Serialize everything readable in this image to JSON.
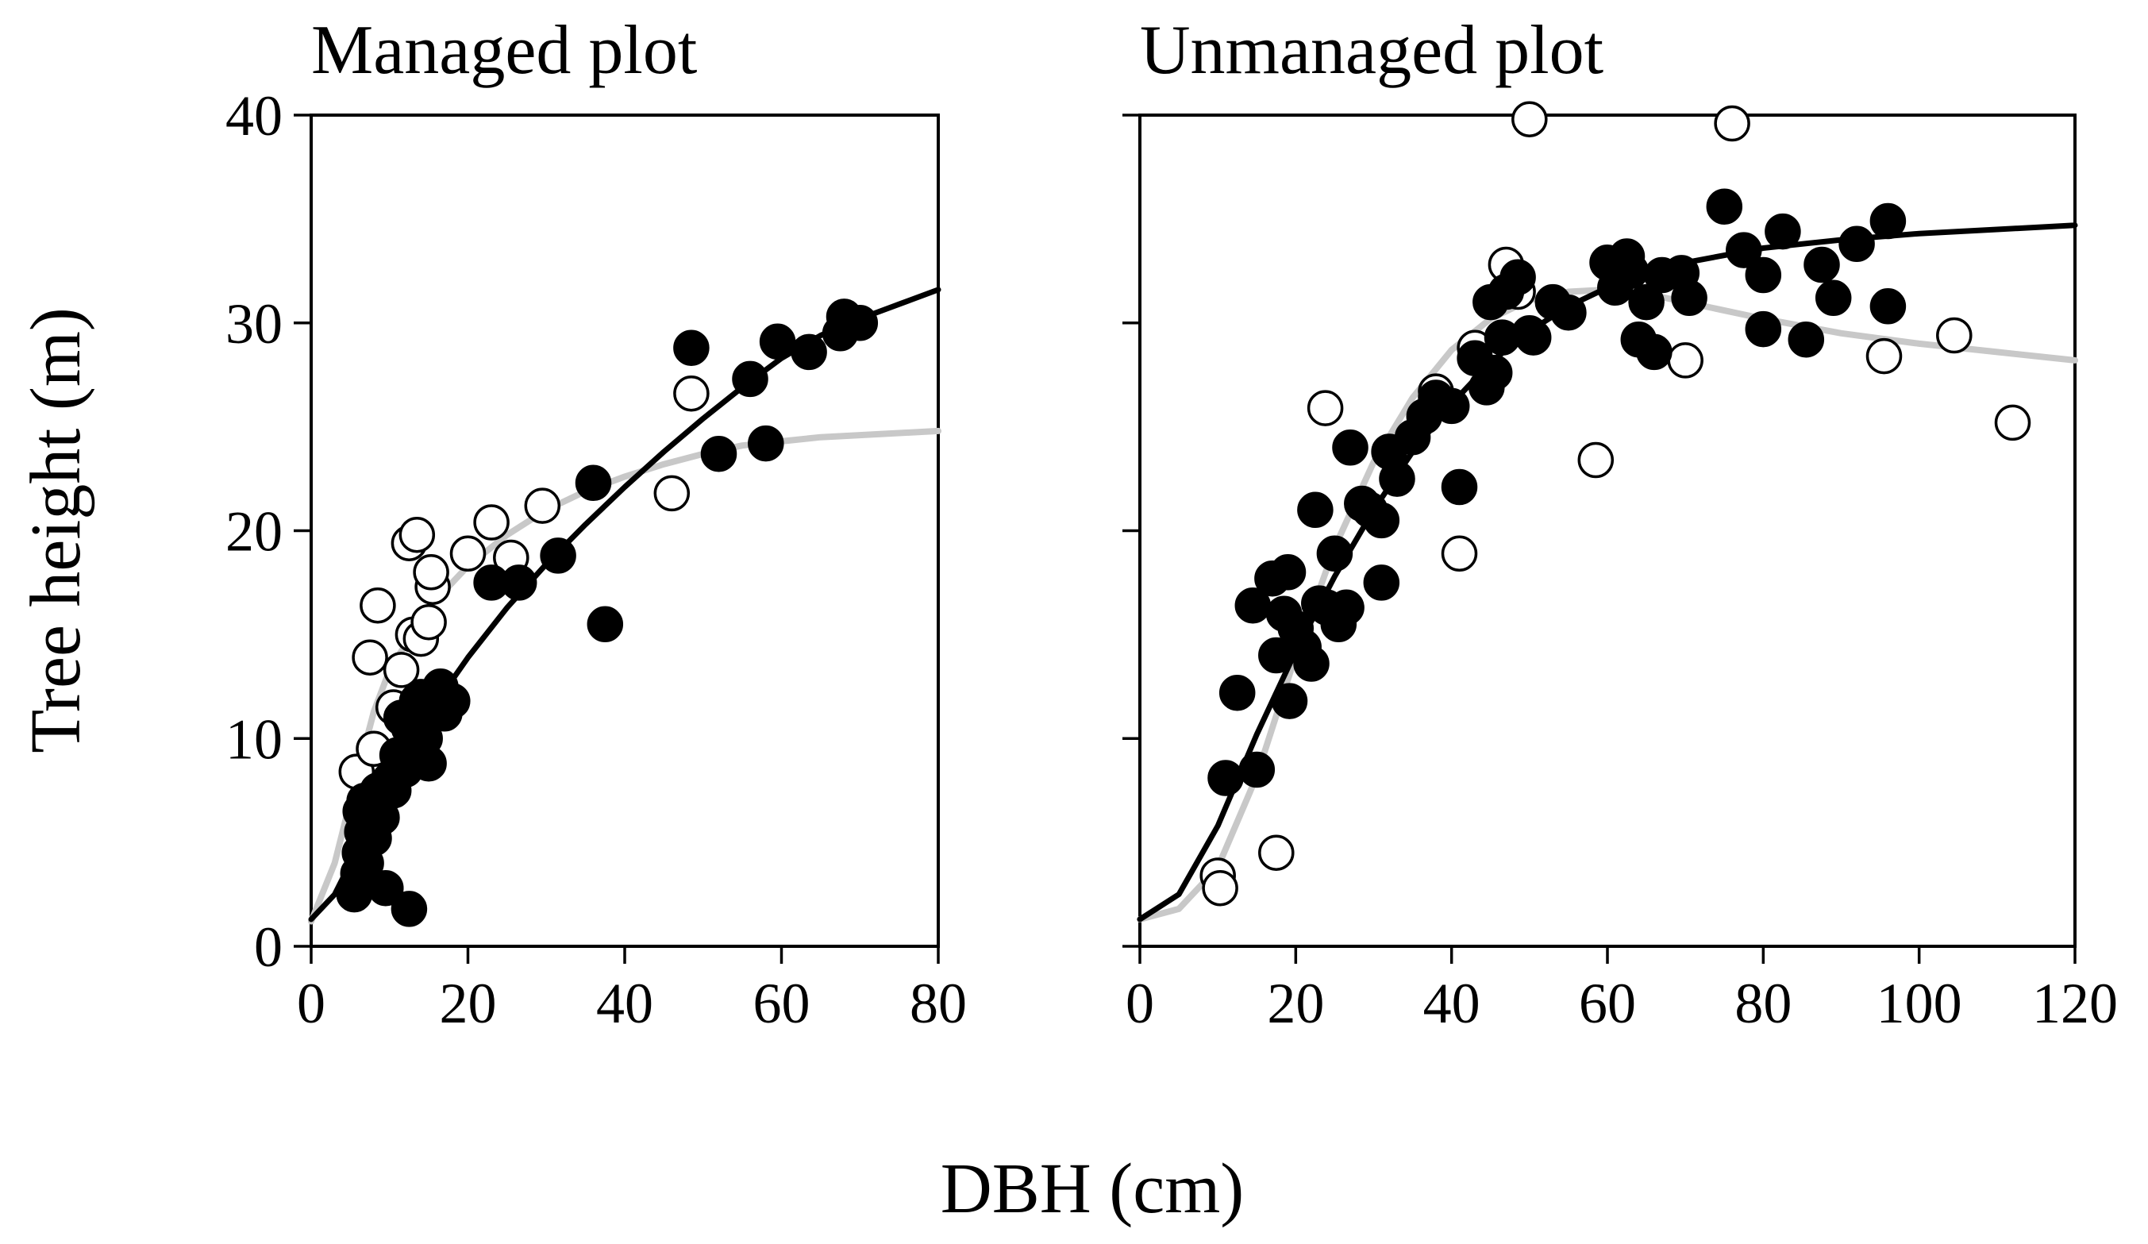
{
  "figure": {
    "ylabel": "Tree height (m)",
    "xlabel": "DBH (cm)"
  },
  "colors": {
    "filled_marker": "#000000",
    "open_marker_fill": "#ffffff",
    "open_marker_edge": "#000000",
    "fit_black": "#000000",
    "fit_gray": "#c8c8c8"
  },
  "chart_data": [
    {
      "type": "scatter",
      "title": "Managed plot",
      "xlabel": "DBH (cm)",
      "ylabel": "Tree height (m)",
      "xlim": [
        0,
        80
      ],
      "ylim": [
        0,
        40
      ],
      "xticks": [
        0,
        20,
        40,
        60,
        80
      ],
      "yticks": [
        0,
        10,
        20,
        30,
        40
      ],
      "xtick_labels": [
        "0",
        "20",
        "40",
        "60",
        "80"
      ],
      "ytick_labels": [
        "0",
        "10",
        "20",
        "30",
        "40"
      ],
      "series": [
        {
          "name": "filled",
          "marker": "filled-circle",
          "points": [
            [
              5.5,
              2.5
            ],
            [
              6,
              3.5
            ],
            [
              6.2,
              4.5
            ],
            [
              6.5,
              5.5
            ],
            [
              6.3,
              6.5
            ],
            [
              6.8,
              7
            ],
            [
              7,
              4
            ],
            [
              7.5,
              6
            ],
            [
              8,
              5.2
            ],
            [
              8.5,
              7.5
            ],
            [
              9,
              6.2
            ],
            [
              9.5,
              2.8
            ],
            [
              10,
              8
            ],
            [
              10.5,
              7.5
            ],
            [
              11,
              9.2
            ],
            [
              11.5,
              11
            ],
            [
              12,
              8.5
            ],
            [
              12.5,
              10.5
            ],
            [
              12.5,
              1.8
            ],
            [
              13,
              9.8
            ],
            [
              13.5,
              11.8
            ],
            [
              14,
              12
            ],
            [
              14.5,
              10
            ],
            [
              15,
              8.8
            ],
            [
              16,
              11.5
            ],
            [
              16.5,
              12.5
            ],
            [
              17,
              11.2
            ],
            [
              18,
              11.8
            ],
            [
              23,
              17.5
            ],
            [
              26.5,
              17.5
            ],
            [
              31.5,
              18.8
            ],
            [
              36,
              22.3
            ],
            [
              37.5,
              15.5
            ],
            [
              48.5,
              28.8
            ],
            [
              52,
              23.7
            ],
            [
              56,
              27.3
            ],
            [
              58,
              24.2
            ],
            [
              59.5,
              29.1
            ],
            [
              63.5,
              28.6
            ],
            [
              67.5,
              29.5
            ],
            [
              68,
              30.3
            ],
            [
              70,
              30
            ]
          ]
        },
        {
          "name": "open",
          "marker": "open-circle",
          "points": [
            [
              5.8,
              8.4
            ],
            [
              7.5,
              13.9
            ],
            [
              8.5,
              16.4
            ],
            [
              8,
              9.5
            ],
            [
              10.5,
              11.5
            ],
            [
              11.5,
              13.3
            ],
            [
              12.5,
              19.4
            ],
            [
              13,
              15
            ],
            [
              13.5,
              19.8
            ],
            [
              14,
              14.8
            ],
            [
              15,
              15.6
            ],
            [
              15.5,
              17.3
            ],
            [
              15.3,
              18
            ],
            [
              20,
              18.9
            ],
            [
              23,
              20.4
            ],
            [
              25.5,
              18.7
            ],
            [
              29.5,
              21.2
            ],
            [
              46,
              21.8
            ],
            [
              48.5,
              26.6
            ]
          ]
        }
      ],
      "fits": [
        {
          "name": "fit-black",
          "color": "#000000",
          "points": [
            [
              0,
              1.3
            ],
            [
              3,
              2.5
            ],
            [
              5,
              4
            ],
            [
              8,
              6.3
            ],
            [
              10,
              7.9
            ],
            [
              15,
              11.2
            ],
            [
              20,
              13.9
            ],
            [
              25,
              16.3
            ],
            [
              30,
              18.4
            ],
            [
              35,
              20.3
            ],
            [
              40,
              22.1
            ],
            [
              45,
              23.8
            ],
            [
              50,
              25.4
            ],
            [
              55,
              26.9
            ],
            [
              60,
              28.3
            ],
            [
              65,
              29.4
            ],
            [
              70,
              30.2
            ],
            [
              75,
              30.9
            ],
            [
              80,
              31.6
            ]
          ]
        },
        {
          "name": "fit-gray",
          "color": "#c8c8c8",
          "points": [
            [
              0,
              1.2
            ],
            [
              3,
              4
            ],
            [
              5,
              7
            ],
            [
              8,
              11.3
            ],
            [
              10,
              13.3
            ],
            [
              15,
              16.3
            ],
            [
              20,
              18.3
            ],
            [
              25,
              19.8
            ],
            [
              30,
              21
            ],
            [
              35,
              21.9
            ],
            [
              40,
              22.6
            ],
            [
              45,
              23.2
            ],
            [
              50,
              23.7
            ],
            [
              55,
              24.1
            ],
            [
              60,
              24.3
            ],
            [
              65,
              24.5
            ],
            [
              70,
              24.6
            ],
            [
              75,
              24.7
            ],
            [
              80,
              24.8
            ]
          ]
        }
      ]
    },
    {
      "type": "scatter",
      "title": "Unmanaged plot",
      "xlabel": "DBH (cm)",
      "ylabel": "Tree height (m)",
      "xlim": [
        0,
        120
      ],
      "ylim": [
        0,
        40
      ],
      "xticks": [
        0,
        20,
        40,
        60,
        80,
        100,
        120
      ],
      "yticks": [
        0,
        10,
        20,
        30,
        40
      ],
      "xtick_labels": [
        "0",
        "20",
        "40",
        "60",
        "80",
        "100",
        "120"
      ],
      "ytick_labels": [],
      "series": [
        {
          "name": "filled",
          "marker": "filled-circle",
          "points": [
            [
              11,
              8.1
            ],
            [
              12.5,
              12.2
            ],
            [
              14.5,
              16.4
            ],
            [
              15,
              8.5
            ],
            [
              17,
              17.7
            ],
            [
              17.5,
              14
            ],
            [
              18.5,
              16
            ],
            [
              19,
              18
            ],
            [
              19.2,
              11.8
            ],
            [
              20,
              15.3
            ],
            [
              21,
              14.4
            ],
            [
              22,
              13.6
            ],
            [
              22.5,
              21
            ],
            [
              23,
              16.5
            ],
            [
              24,
              16.3
            ],
            [
              25,
              18.9
            ],
            [
              25.5,
              15.5
            ],
            [
              26.5,
              16.3
            ],
            [
              27,
              24
            ],
            [
              28.5,
              21.3
            ],
            [
              29.5,
              21
            ],
            [
              31,
              17.5
            ],
            [
              31,
              20.5
            ],
            [
              32,
              23.8
            ],
            [
              33,
              22.5
            ],
            [
              35,
              24.5
            ],
            [
              36.5,
              25.5
            ],
            [
              38,
              26.4
            ],
            [
              40,
              26
            ],
            [
              41,
              22.1
            ],
            [
              43,
              28.3
            ],
            [
              44.5,
              26.9
            ],
            [
              45,
              31
            ],
            [
              45.5,
              27.6
            ],
            [
              46.5,
              29.3
            ],
            [
              47,
              31.5
            ],
            [
              48.5,
              32.2
            ],
            [
              50,
              29.5
            ],
            [
              50.5,
              29.3
            ],
            [
              53,
              31
            ],
            [
              55,
              30.5
            ],
            [
              60,
              32.9
            ],
            [
              61,
              31.7
            ],
            [
              62.5,
              33.2
            ],
            [
              63,
              32.5
            ],
            [
              64,
              29.2
            ],
            [
              65,
              31
            ],
            [
              66,
              28.6
            ],
            [
              67,
              32.3
            ],
            [
              69.5,
              32.4
            ],
            [
              70.5,
              31.2
            ],
            [
              75,
              35.6
            ],
            [
              77.5,
              33.5
            ],
            [
              80,
              32.3
            ],
            [
              80,
              29.7
            ],
            [
              82.5,
              34.4
            ],
            [
              85.5,
              29.2
            ],
            [
              87.5,
              32.8
            ],
            [
              89,
              31.2
            ],
            [
              92,
              33.8
            ],
            [
              96,
              34.9
            ],
            [
              96,
              30.8
            ]
          ]
        },
        {
          "name": "open",
          "marker": "open-circle",
          "points": [
            [
              10,
              3.4
            ],
            [
              10.3,
              2.8
            ],
            [
              17.5,
              4.5
            ],
            [
              23.8,
              25.9
            ],
            [
              38,
              26.7
            ],
            [
              41,
              18.9
            ],
            [
              43,
              28.8
            ],
            [
              47,
              32.8
            ],
            [
              48.5,
              31.5
            ],
            [
              50,
              39.8
            ],
            [
              58.5,
              23.4
            ],
            [
              70,
              28.2
            ],
            [
              76,
              39.6
            ],
            [
              95.5,
              28.4
            ],
            [
              104.5,
              29.4
            ],
            [
              112,
              25.2
            ]
          ]
        }
      ],
      "fits": [
        {
          "name": "fit-black",
          "color": "#000000",
          "points": [
            [
              0,
              1.3
            ],
            [
              5,
              2.5
            ],
            [
              10,
              5.8
            ],
            [
              15,
              10.2
            ],
            [
              20,
              14.2
            ],
            [
              25,
              17.8
            ],
            [
              30,
              21
            ],
            [
              35,
              23.8
            ],
            [
              40,
              26.1
            ],
            [
              45,
              28.1
            ],
            [
              50,
              29.6
            ],
            [
              55,
              30.8
            ],
            [
              60,
              31.7
            ],
            [
              65,
              32.4
            ],
            [
              70,
              32.9
            ],
            [
              80,
              33.6
            ],
            [
              90,
              34
            ],
            [
              100,
              34.3
            ],
            [
              110,
              34.5
            ],
            [
              120,
              34.7
            ]
          ]
        },
        {
          "name": "fit-gray",
          "color": "#c8c8c8",
          "points": [
            [
              0,
              1.3
            ],
            [
              5,
              1.8
            ],
            [
              10,
              3.8
            ],
            [
              15,
              8.2
            ],
            [
              20,
              14
            ],
            [
              25,
              19.2
            ],
            [
              30,
              23.3
            ],
            [
              35,
              26.4
            ],
            [
              40,
              28.7
            ],
            [
              45,
              30.2
            ],
            [
              50,
              31.1
            ],
            [
              55,
              31.5
            ],
            [
              60,
              31.6
            ],
            [
              65,
              31.4
            ],
            [
              70,
              31
            ],
            [
              80,
              30.2
            ],
            [
              90,
              29.5
            ],
            [
              100,
              29
            ],
            [
              110,
              28.6
            ],
            [
              120,
              28.2
            ]
          ]
        }
      ]
    }
  ]
}
